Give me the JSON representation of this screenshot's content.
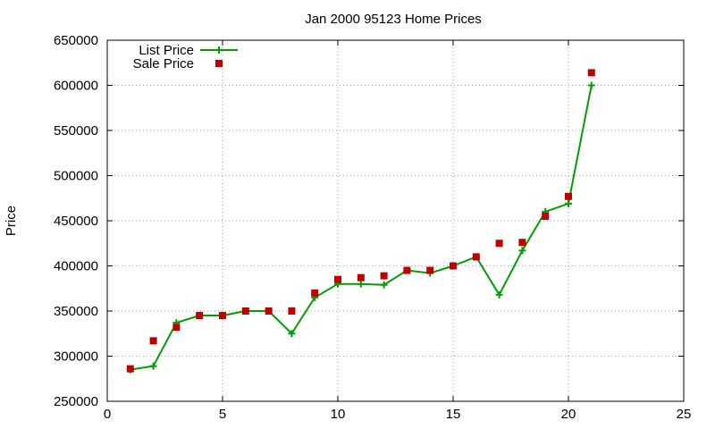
{
  "chart_data": {
    "type": "line",
    "title": "Jan 2000 95123 Home Prices",
    "xlabel": "",
    "ylabel": "Price",
    "xlim": [
      0,
      25
    ],
    "ylim": [
      250000,
      650000
    ],
    "x_ticks": [
      "0",
      "5",
      "10",
      "15",
      "20",
      "25"
    ],
    "y_ticks": [
      "250000",
      "300000",
      "350000",
      "400000",
      "450000",
      "500000",
      "550000",
      "600000",
      "650000"
    ],
    "grid": true,
    "legend_position": "top-left",
    "series": [
      {
        "name": "List Price",
        "style": "line-with-plus-markers",
        "color": "#00a000",
        "x": [
          1,
          2,
          3,
          4,
          5,
          6,
          7,
          8,
          9,
          10,
          11,
          12,
          13,
          14,
          15,
          16,
          17,
          18,
          19,
          20,
          21
        ],
        "y": [
          285000,
          289000,
          337000,
          345000,
          345000,
          350000,
          350000,
          325000,
          365000,
          380000,
          380000,
          379000,
          395000,
          392000,
          400000,
          410000,
          368000,
          417000,
          460000,
          469000,
          600000
        ]
      },
      {
        "name": "Sale Price",
        "style": "square-points",
        "color": "#c00000",
        "x": [
          1,
          2,
          3,
          4,
          5,
          6,
          7,
          8,
          9,
          10,
          11,
          12,
          13,
          14,
          15,
          16,
          17,
          18,
          19,
          20,
          21
        ],
        "y": [
          286000,
          317000,
          332000,
          345000,
          345000,
          350000,
          350000,
          350000,
          370000,
          385000,
          387000,
          389000,
          395000,
          395000,
          400000,
          410000,
          425000,
          426000,
          455000,
          477000,
          614000
        ]
      }
    ]
  }
}
